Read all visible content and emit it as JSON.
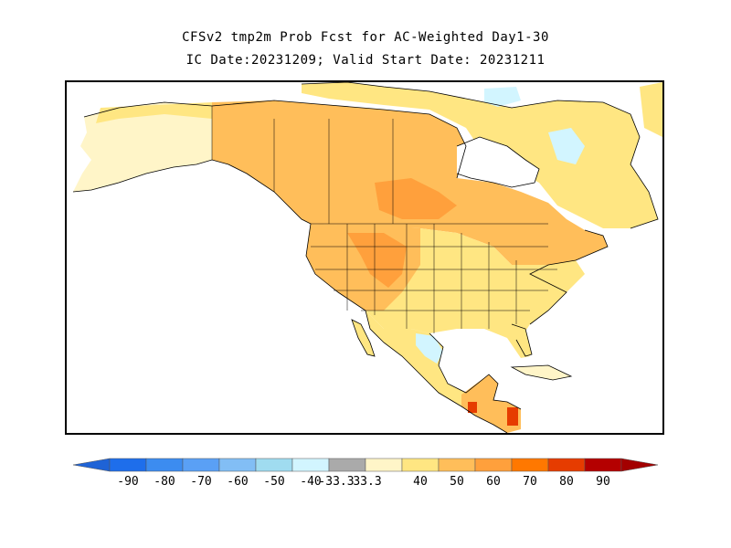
{
  "title_line1": "CFSv2 tmp2m Prob Fcst for AC-Weighted Day1-30",
  "title_line2": "IC Date:20231209; Valid Start Date: 20231211",
  "colorbar": {
    "labels": [
      "-90",
      "-80",
      "-70",
      "-60",
      "-50",
      "-40",
      "-33.3",
      "33.3",
      "40",
      "50",
      "60",
      "70",
      "80",
      "90"
    ],
    "colors": [
      "#1e6eeb",
      "#3c8cf0",
      "#5aa0f5",
      "#82bef5",
      "#a0dcf0",
      "#d2f5ff",
      "#aaaaaa",
      "#fff5c8",
      "#ffe682",
      "#ffbe5a",
      "#ffa03c",
      "#ff7800",
      "#e63c00",
      "#b40000"
    ],
    "left_tip_color": "#1f63d6",
    "right_tip_color": "#a30000"
  },
  "map_colors": {
    "ocean": "#ffffff",
    "land_light": "#fff5c8",
    "land_pale": "#ffe682",
    "land_mid": "#ffd070",
    "land_orange": "#ffbe5a",
    "land_deep": "#ffa03c",
    "land_red": "#e63c00",
    "land_blue": "#d2f5ff",
    "coast": "#000000"
  }
}
